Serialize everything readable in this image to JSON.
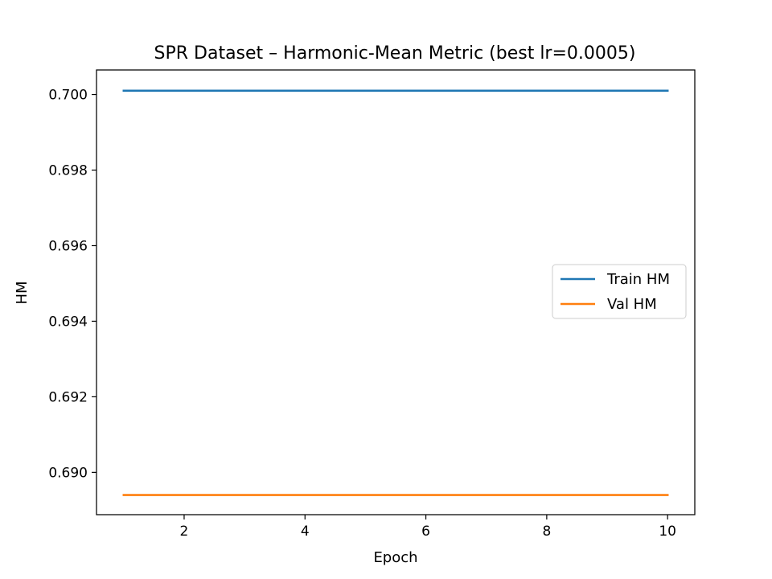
{
  "chart_data": {
    "type": "line",
    "title": "SPR Dataset – Harmonic-Mean Metric (best lr=0.0005)",
    "xlabel": "Epoch",
    "ylabel": "HM",
    "xlim": [
      0.55,
      10.45
    ],
    "ylim": [
      0.68888,
      0.70065
    ],
    "x": [
      1,
      2,
      3,
      4,
      5,
      6,
      7,
      8,
      9,
      10
    ],
    "x_ticks": [
      2,
      4,
      6,
      8,
      10
    ],
    "y_ticks": [
      0.69,
      0.692,
      0.694,
      0.696,
      0.698,
      0.7
    ],
    "y_tick_labels": [
      "0.690",
      "0.692",
      "0.694",
      "0.696",
      "0.698",
      "0.700"
    ],
    "series": [
      {
        "name": "Train HM",
        "color": "#1f77b4",
        "values": [
          0.7001,
          0.7001,
          0.7001,
          0.7001,
          0.7001,
          0.7001,
          0.7001,
          0.7001,
          0.7001,
          0.7001
        ]
      },
      {
        "name": "Val HM",
        "color": "#ff7f0e",
        "values": [
          0.6894,
          0.6894,
          0.6894,
          0.6894,
          0.6894,
          0.6894,
          0.6894,
          0.6894,
          0.6894,
          0.6894
        ]
      }
    ],
    "grid": false,
    "legend": "center-right"
  }
}
